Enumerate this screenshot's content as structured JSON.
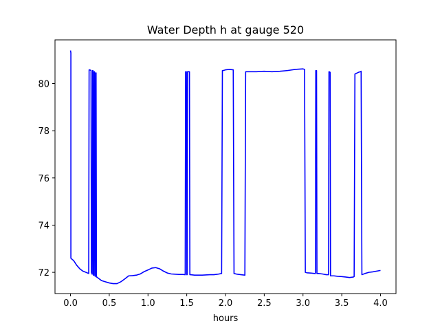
{
  "chart_data": {
    "type": "line",
    "title": "Water Depth h at gauge 520",
    "xlabel": "hours",
    "ylabel": "",
    "xlim": [
      -0.2,
      4.2
    ],
    "ylim": [
      71.1,
      81.85
    ],
    "xticks": [
      0.0,
      0.5,
      1.0,
      1.5,
      2.0,
      2.5,
      3.0,
      3.5,
      4.0
    ],
    "xtick_labels": [
      "0.0",
      "0.5",
      "1.0",
      "1.5",
      "2.0",
      "2.5",
      "3.0",
      "3.5",
      "4.0"
    ],
    "yticks": [
      72,
      74,
      76,
      78,
      80
    ],
    "ytick_labels": [
      "72",
      "74",
      "76",
      "78",
      "80"
    ],
    "grid": false,
    "color": "#0000ff",
    "series": [
      {
        "x": [
          0.0,
          0.005,
          0.005,
          0.01,
          0.04,
          0.08,
          0.12,
          0.16,
          0.2,
          0.235,
          0.24,
          0.245,
          0.255,
          0.265,
          0.27,
          0.275,
          0.28,
          0.285,
          0.29,
          0.295,
          0.3,
          0.305,
          0.31,
          0.315,
          0.32,
          0.325,
          0.33,
          0.335,
          0.34,
          0.4,
          0.45,
          0.5,
          0.55,
          0.6,
          0.65,
          0.7,
          0.75,
          0.8,
          0.85,
          0.9,
          0.95,
          1.0,
          1.05,
          1.1,
          1.15,
          1.2,
          1.25,
          1.3,
          1.35,
          1.4,
          1.45,
          1.48,
          1.485,
          1.49,
          1.495,
          1.5,
          1.505,
          1.51,
          1.515,
          1.52,
          1.525,
          1.53,
          1.535,
          1.54,
          1.55,
          1.6,
          1.7,
          1.8,
          1.85,
          1.9,
          1.95,
          1.96,
          1.97,
          2.0,
          2.05,
          2.1,
          2.11,
          2.15,
          2.2,
          2.25,
          2.26,
          2.3,
          2.4,
          2.5,
          2.6,
          2.7,
          2.8,
          2.9,
          3.0,
          3.02,
          3.03,
          3.05,
          3.1,
          3.15,
          3.16,
          3.165,
          3.17,
          3.175,
          3.18,
          3.185,
          3.19,
          3.2,
          3.25,
          3.3,
          3.33,
          3.335,
          3.34,
          3.345,
          3.35,
          3.355,
          3.36,
          3.4,
          3.45,
          3.5,
          3.55,
          3.6,
          3.65,
          3.66,
          3.67,
          3.7,
          3.72,
          3.74,
          3.75,
          3.76,
          3.8,
          3.85,
          3.9,
          3.95,
          4.0
        ],
        "y": [
          81.4,
          81.3,
          72.6,
          72.58,
          72.5,
          72.3,
          72.15,
          72.05,
          72.0,
          71.95,
          80.58,
          80.58,
          80.57,
          80.55,
          72.0,
          71.95,
          71.92,
          80.55,
          80.55,
          71.88,
          71.88,
          80.5,
          80.5,
          71.85,
          71.83,
          80.45,
          80.45,
          71.8,
          71.8,
          71.65,
          71.6,
          71.55,
          71.52,
          71.52,
          71.6,
          71.72,
          71.85,
          71.86,
          71.88,
          71.93,
          72.03,
          72.1,
          72.18,
          72.2,
          72.15,
          72.05,
          71.97,
          71.93,
          71.92,
          71.91,
          71.91,
          71.9,
          80.5,
          80.5,
          80.5,
          71.9,
          71.9,
          80.5,
          80.5,
          80.5,
          80.5,
          80.5,
          80.5,
          71.9,
          71.9,
          71.88,
          71.88,
          71.9,
          71.9,
          71.92,
          71.95,
          80.55,
          80.55,
          80.58,
          80.6,
          80.58,
          71.95,
          71.92,
          71.9,
          71.88,
          80.5,
          80.5,
          80.5,
          80.52,
          80.5,
          80.52,
          80.55,
          80.6,
          80.62,
          80.6,
          72.0,
          71.98,
          71.97,
          71.95,
          71.95,
          80.55,
          80.55,
          80.55,
          71.95,
          71.95,
          71.95,
          71.95,
          71.93,
          71.9,
          71.9,
          80.5,
          80.5,
          80.48,
          80.48,
          71.85,
          71.85,
          71.85,
          71.83,
          71.82,
          71.8,
          71.78,
          71.8,
          71.82,
          80.4,
          80.45,
          80.48,
          80.5,
          80.52,
          71.9,
          71.95,
          72.0,
          72.02,
          72.05,
          72.08
        ]
      }
    ]
  }
}
